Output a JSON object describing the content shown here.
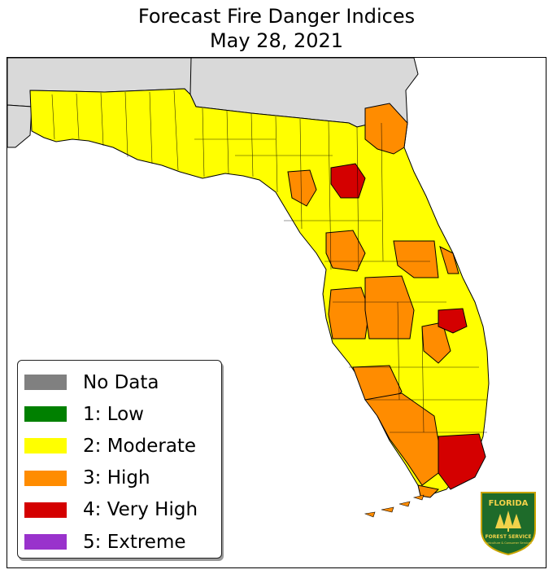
{
  "title": {
    "line1": "Forecast Fire Danger Indices",
    "line2": "May 28, 2021"
  },
  "legend": [
    {
      "label": "No Data",
      "color": "#808080"
    },
    {
      "label": "1: Low",
      "color": "#008000"
    },
    {
      "label": "2: Moderate",
      "color": "#ffff00"
    },
    {
      "label": "3: High",
      "color": "#ff8c00"
    },
    {
      "label": "4: Very High",
      "color": "#d40000"
    },
    {
      "label": "5: Extreme",
      "color": "#9932cc"
    }
  ],
  "map": {
    "state": "Florida",
    "surrounding_land_color": "#d9d9d9",
    "regions_by_level": {
      "2: Moderate": "most of the panhandle, north-central and central peninsula, southeast coast north of Miami-Dade",
      "3: High": "northeast corner, several north-central counties, Tampa Bay area, central-east counties, southwest coast, Monroe (Keys)",
      "4: Very High": "one north-central county, Brevard (east-central coast), Miami-Dade"
    }
  },
  "logo": {
    "line1": "FLORIDA",
    "line2": "FOREST SERVICE",
    "line3": "Agriculture & Consumer Services",
    "color": "#1e6b2a"
  }
}
